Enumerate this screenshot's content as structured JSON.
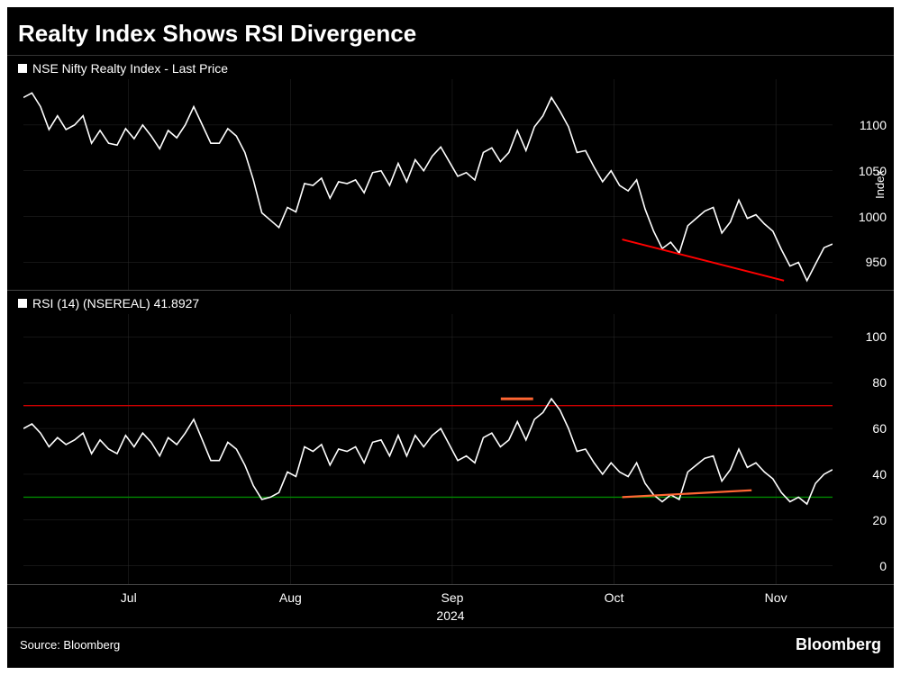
{
  "title": "Realty Index Shows RSI Divergence",
  "source": "Source: Bloomberg",
  "brand": "Bloomberg",
  "x_axis": {
    "ticks": [
      "Jul",
      "Aug",
      "Sep",
      "Oct",
      "Nov"
    ],
    "tick_positions_pct": [
      13,
      33,
      53,
      73,
      93
    ],
    "year": "2024",
    "grid_color": "#333333"
  },
  "top_panel": {
    "legend": "NSE Nifty Realty Index - Last Price",
    "y_label": "Index",
    "ylim": [
      920,
      1150
    ],
    "yticks": [
      950,
      1000,
      1050,
      1100
    ],
    "line_color": "#ffffff",
    "line_width": 1.6,
    "grid_color": "#333333",
    "trend_line": {
      "color": "#ff0000",
      "width": 2,
      "x1_pct": 74,
      "y1": 975,
      "x2_pct": 94,
      "y2": 930
    },
    "data": [
      1130,
      1135,
      1120,
      1095,
      1110,
      1095,
      1100,
      1110,
      1080,
      1094,
      1080,
      1078,
      1096,
      1085,
      1100,
      1088,
      1074,
      1094,
      1086,
      1100,
      1120,
      1100,
      1080,
      1080,
      1096,
      1088,
      1070,
      1040,
      1004,
      996,
      988,
      1010,
      1005,
      1036,
      1034,
      1042,
      1020,
      1038,
      1036,
      1040,
      1026,
      1048,
      1050,
      1034,
      1058,
      1038,
      1062,
      1050,
      1066,
      1076,
      1060,
      1044,
      1048,
      1040,
      1070,
      1075,
      1060,
      1070,
      1094,
      1072,
      1098,
      1110,
      1130,
      1115,
      1098,
      1070,
      1072,
      1054,
      1038,
      1050,
      1034,
      1028,
      1040,
      1008,
      984,
      965,
      972,
      960,
      990,
      998,
      1006,
      1010,
      982,
      994,
      1018,
      998,
      1002,
      992,
      984,
      964,
      946,
      950,
      930,
      948,
      966,
      970
    ]
  },
  "bottom_panel": {
    "legend": "RSI (14) (NSEREAL) 41.8927",
    "ylim": [
      -8,
      110
    ],
    "yticks": [
      0,
      20,
      40,
      60,
      80,
      100
    ],
    "line_color": "#ffffff",
    "line_width": 1.6,
    "grid_color": "#333333",
    "overbought_line": {
      "y": 70,
      "color": "#cc0000",
      "width": 1.4
    },
    "oversold_line": {
      "y": 30,
      "color": "#008800",
      "width": 1.4
    },
    "touch_marker": {
      "color": "#ff6633",
      "width": 3,
      "x1_pct": 59,
      "y": 73,
      "x2_pct": 63
    },
    "trend_line": {
      "color": "#ff6633",
      "width": 2.2,
      "x1_pct": 74,
      "y1": 30,
      "x2_pct": 90,
      "y2": 33
    },
    "data": [
      60,
      62,
      58,
      52,
      56,
      53,
      55,
      58,
      49,
      55,
      51,
      49,
      57,
      52,
      58,
      54,
      48,
      56,
      53,
      58,
      64,
      55,
      46,
      46,
      54,
      51,
      44,
      35,
      29,
      30,
      32,
      41,
      39,
      52,
      50,
      53,
      44,
      51,
      50,
      52,
      45,
      54,
      55,
      48,
      57,
      48,
      57,
      52,
      57,
      60,
      53,
      46,
      48,
      45,
      56,
      58,
      52,
      55,
      63,
      55,
      64,
      67,
      73,
      68,
      60,
      50,
      51,
      45,
      40,
      45,
      41,
      39,
      45,
      36,
      31,
      28,
      31,
      29,
      41,
      44,
      47,
      48,
      37,
      42,
      51,
      43,
      45,
      41,
      38,
      32,
      28,
      30,
      27,
      36,
      40,
      42
    ]
  }
}
